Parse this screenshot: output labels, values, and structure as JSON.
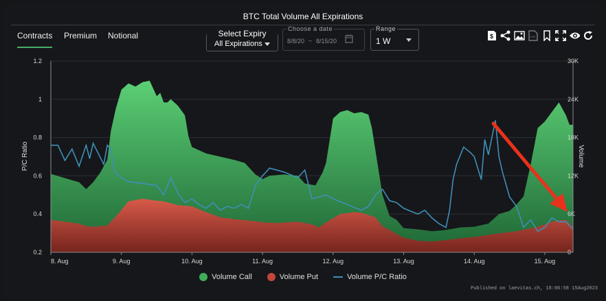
{
  "title": "BTC Total Volume All Expirations",
  "tabs": [
    {
      "label": "Contracts",
      "active": true
    },
    {
      "label": "Premium",
      "active": false
    },
    {
      "label": "Notional",
      "active": false
    }
  ],
  "expiry": {
    "label": "Select Expiry",
    "value": "All Expirations"
  },
  "date_range": {
    "caption": "Choose a date",
    "start": "8/8/20",
    "separator": "–",
    "end": "8/15/20"
  },
  "range": {
    "caption": "Range",
    "value": "1 W"
  },
  "toolbar_icons": [
    "dollar-file-icon",
    "share-icon",
    "image-export-icon",
    "csv-icon",
    "bookmark-icon",
    "fullscreen-icon",
    "eye-icon",
    "refresh-icon"
  ],
  "legend": {
    "call": "Volume Call",
    "put": "Volume Put",
    "ratio": "Volume P/C Ratio"
  },
  "published": "Published on laevitas.ch, 18:06:58 15Aug2023",
  "colors": {
    "call": "#4cc96a",
    "put": "#d9493e",
    "ratio": "#3f8fb9",
    "arrow": "#e8321c"
  },
  "chart_data": {
    "type": "area",
    "title": "BTC Total Volume All Expirations",
    "categories": [
      "8. Aug",
      "9. Aug",
      "10. Aug",
      "11. Aug",
      "12. Aug",
      "13. Aug",
      "14. Aug",
      "15. Aug"
    ],
    "x_ticks": [
      8,
      9,
      10,
      11,
      12,
      13,
      14,
      15
    ],
    "x_range": [
      8,
      15.4
    ],
    "y_left": {
      "label": "P/C Ratio",
      "range": [
        0.2,
        1.2
      ],
      "ticks": [
        "0.2",
        "0.4",
        "0.6",
        "0.8",
        "1",
        "1.2"
      ]
    },
    "y_right": {
      "label": "Volume",
      "range": [
        0,
        30000
      ],
      "ticks": [
        "0",
        "6K",
        "12K",
        "18K",
        "24K",
        "30K"
      ]
    },
    "series": [
      {
        "name": "Volume Call",
        "type": "area",
        "axis": "right",
        "x": [
          8.0,
          8.15,
          8.3,
          8.4,
          8.5,
          8.6,
          8.7,
          8.8,
          8.85,
          8.92,
          9.0,
          9.1,
          9.2,
          9.3,
          9.4,
          9.5,
          9.55,
          9.6,
          9.65,
          9.7,
          9.8,
          9.9,
          9.95,
          10.0,
          10.2,
          10.4,
          10.6,
          10.75,
          10.9,
          11.0,
          11.1,
          11.3,
          11.5,
          11.6,
          11.75,
          11.85,
          11.9,
          12.0,
          12.1,
          12.2,
          12.3,
          12.4,
          12.5,
          12.55,
          12.6,
          12.7,
          12.8,
          12.9,
          13.0,
          13.2,
          13.4,
          13.6,
          13.8,
          14.0,
          14.2,
          14.35,
          14.5,
          14.6,
          14.7,
          14.8,
          14.9,
          15.0,
          15.1,
          15.2,
          15.3,
          15.35,
          15.4
        ],
        "values": [
          12300,
          11800,
          11300,
          11000,
          9900,
          11000,
          12500,
          14500,
          19000,
          22500,
          25500,
          26500,
          26000,
          26700,
          26900,
          24500,
          25000,
          23500,
          23500,
          24000,
          23000,
          21500,
          18200,
          16500,
          15500,
          15000,
          14500,
          14000,
          12200,
          11500,
          12000,
          12200,
          12000,
          10800,
          10500,
          12500,
          14000,
          21000,
          22000,
          22300,
          21800,
          22000,
          21600,
          19500,
          16000,
          9000,
          5700,
          5100,
          3800,
          3600,
          3300,
          3500,
          3900,
          4000,
          4500,
          6000,
          6500,
          7500,
          8800,
          13800,
          19500,
          20500,
          22000,
          23500,
          21500,
          20000,
          20000
        ]
      },
      {
        "name": "Volume Put",
        "type": "area",
        "axis": "right",
        "x": [
          8.0,
          8.2,
          8.4,
          8.5,
          8.6,
          8.8,
          8.95,
          9.1,
          9.3,
          9.5,
          9.6,
          9.8,
          10.0,
          10.2,
          10.4,
          10.6,
          10.8,
          11.0,
          11.2,
          11.5,
          11.7,
          11.8,
          11.9,
          12.1,
          12.3,
          12.4,
          12.6,
          12.7,
          13.0,
          13.2,
          13.4,
          13.6,
          13.8,
          14.0,
          14.3,
          14.6,
          14.9,
          15.1,
          15.2,
          15.3,
          15.4
        ],
        "values": [
          5100,
          4800,
          4500,
          4100,
          4000,
          4200,
          6000,
          8000,
          8400,
          8100,
          8000,
          7400,
          7200,
          6300,
          5500,
          5200,
          5000,
          4700,
          4600,
          4800,
          4400,
          3900,
          4700,
          6000,
          6300,
          6200,
          5500,
          4100,
          2300,
          1800,
          1700,
          1900,
          2200,
          2400,
          2900,
          3300,
          4000,
          4800,
          5000,
          5100,
          4000
        ]
      },
      {
        "name": "Volume P/C Ratio",
        "type": "line",
        "axis": "left",
        "x": [
          8.0,
          8.1,
          8.2,
          8.3,
          8.4,
          8.5,
          8.55,
          8.6,
          8.75,
          8.8,
          8.85,
          8.9,
          9.0,
          9.1,
          9.3,
          9.5,
          9.6,
          9.7,
          9.8,
          9.9,
          10.0,
          10.1,
          10.2,
          10.3,
          10.4,
          10.5,
          10.6,
          10.7,
          10.8,
          10.9,
          11.0,
          11.1,
          11.3,
          11.5,
          11.6,
          11.7,
          11.9,
          12.0,
          12.2,
          12.4,
          12.5,
          12.6,
          12.7,
          12.8,
          12.9,
          13.0,
          13.2,
          13.3,
          13.4,
          13.5,
          13.6,
          13.65,
          13.7,
          13.75,
          13.85,
          13.95,
          14.0,
          14.1,
          14.15,
          14.2,
          14.25,
          14.3,
          14.35,
          14.4,
          14.5,
          14.6,
          14.7,
          14.8,
          14.9,
          15.0,
          15.1,
          15.2,
          15.3,
          15.4
        ],
        "values": [
          0.76,
          0.76,
          0.68,
          0.74,
          0.65,
          0.76,
          0.69,
          0.77,
          0.66,
          0.76,
          0.74,
          0.62,
          0.59,
          0.57,
          0.56,
          0.55,
          0.5,
          0.59,
          0.51,
          0.46,
          0.48,
          0.45,
          0.43,
          0.46,
          0.42,
          0.44,
          0.43,
          0.45,
          0.43,
          0.55,
          0.6,
          0.64,
          0.62,
          0.59,
          0.63,
          0.48,
          0.5,
          0.48,
          0.45,
          0.42,
          0.44,
          0.5,
          0.53,
          0.47,
          0.46,
          0.43,
          0.4,
          0.42,
          0.38,
          0.35,
          0.33,
          0.42,
          0.58,
          0.66,
          0.75,
          0.72,
          0.7,
          0.58,
          0.79,
          0.71,
          0.8,
          0.89,
          0.7,
          0.62,
          0.49,
          0.44,
          0.33,
          0.37,
          0.31,
          0.33,
          0.38,
          0.36,
          0.36,
          0.32
        ]
      }
    ],
    "grid": true,
    "legend_position": "bottom-center"
  }
}
